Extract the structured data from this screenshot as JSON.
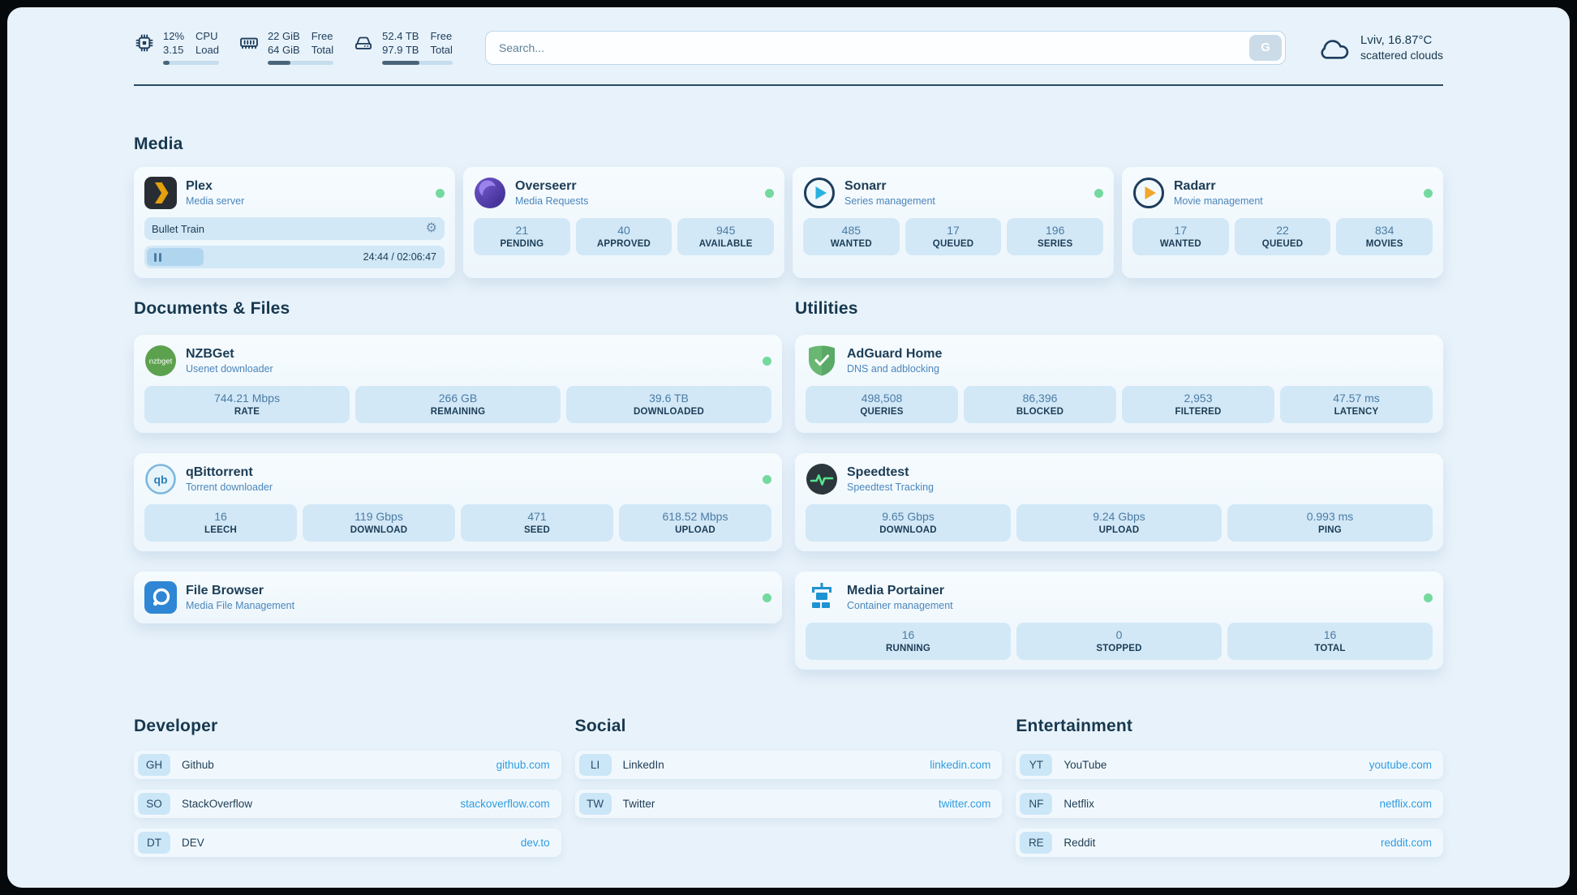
{
  "colors": {
    "accent_link": "#2f9ce0",
    "status_online": "#74d99f",
    "page_background": "#e8f2fa",
    "tile_background": "#d2e8f7"
  },
  "topbar": {
    "cpu": {
      "value": "12%",
      "load": "3.15",
      "label_top": "CPU",
      "label_bottom": "Load",
      "percent": 12
    },
    "ram": {
      "free": "22 GiB",
      "total": "64 GiB",
      "label_top": "Free",
      "label_bottom": "Total",
      "percent": 34
    },
    "disk": {
      "free": "52.4 TB",
      "total": "97.9 TB",
      "label_top": "Free",
      "label_bottom": "Total",
      "percent": 53
    },
    "search": {
      "placeholder": "Search...",
      "button_label": "G"
    },
    "weather": {
      "location": "Lviv, 16.87°C",
      "condition": "scattered clouds"
    }
  },
  "sections": {
    "media": "Media",
    "documents": "Documents & Files",
    "utilities": "Utilities",
    "developer": "Developer",
    "social": "Social",
    "entertainment": "Entertainment"
  },
  "services": {
    "plex": {
      "name": "Plex",
      "subtitle": "Media server",
      "now_playing": "Bullet Train",
      "time": "24:44 / 02:06:47",
      "progress_percent": 19
    },
    "overseerr": {
      "name": "Overseerr",
      "subtitle": "Media Requests",
      "stats": [
        {
          "value": "21",
          "label": "PENDING"
        },
        {
          "value": "40",
          "label": "APPROVED"
        },
        {
          "value": "945",
          "label": "AVAILABLE"
        }
      ]
    },
    "sonarr": {
      "name": "Sonarr",
      "subtitle": "Series management",
      "stats": [
        {
          "value": "485",
          "label": "WANTED"
        },
        {
          "value": "17",
          "label": "QUEUED"
        },
        {
          "value": "196",
          "label": "SERIES"
        }
      ]
    },
    "radarr": {
      "name": "Radarr",
      "subtitle": "Movie management",
      "stats": [
        {
          "value": "17",
          "label": "WANTED"
        },
        {
          "value": "22",
          "label": "QUEUED"
        },
        {
          "value": "834",
          "label": "MOVIES"
        }
      ]
    },
    "nzbget": {
      "name": "NZBGet",
      "subtitle": "Usenet downloader",
      "stats": [
        {
          "value": "744.21 Mbps",
          "label": "RATE"
        },
        {
          "value": "266 GB",
          "label": "REMAINING"
        },
        {
          "value": "39.6 TB",
          "label": "DOWNLOADED"
        }
      ]
    },
    "qbittorrent": {
      "name": "qBittorrent",
      "subtitle": "Torrent downloader",
      "stats": [
        {
          "value": "16",
          "label": "LEECH"
        },
        {
          "value": "119 Gbps",
          "label": "DOWNLOAD"
        },
        {
          "value": "471",
          "label": "SEED"
        },
        {
          "value": "618.52 Mbps",
          "label": "UPLOAD"
        }
      ]
    },
    "filebrowser": {
      "name": "File Browser",
      "subtitle": "Media File Management"
    },
    "adguard": {
      "name": "AdGuard Home",
      "subtitle": "DNS and adblocking",
      "stats": [
        {
          "value": "498,508",
          "label": "QUERIES"
        },
        {
          "value": "86,396",
          "label": "BLOCKED"
        },
        {
          "value": "2,953",
          "label": "FILTERED"
        },
        {
          "value": "47.57 ms",
          "label": "LATENCY"
        }
      ]
    },
    "speedtest": {
      "name": "Speedtest",
      "subtitle": "Speedtest Tracking",
      "stats": [
        {
          "value": "9.65 Gbps",
          "label": "DOWNLOAD"
        },
        {
          "value": "9.24 Gbps",
          "label": "UPLOAD"
        },
        {
          "value": "0.993 ms",
          "label": "PING"
        }
      ]
    },
    "portainer": {
      "name": "Media Portainer",
      "subtitle": "Container management",
      "stats": [
        {
          "value": "16",
          "label": "RUNNING"
        },
        {
          "value": "0",
          "label": "STOPPED"
        },
        {
          "value": "16",
          "label": "TOTAL"
        }
      ]
    }
  },
  "links": {
    "developer": [
      {
        "abbr": "GH",
        "name": "Github",
        "url": "github.com"
      },
      {
        "abbr": "SO",
        "name": "StackOverflow",
        "url": "stackoverflow.com"
      },
      {
        "abbr": "DT",
        "name": "DEV",
        "url": "dev.to"
      }
    ],
    "social": [
      {
        "abbr": "LI",
        "name": "LinkedIn",
        "url": "linkedin.com"
      },
      {
        "abbr": "TW",
        "name": "Twitter",
        "url": "twitter.com"
      }
    ],
    "entertainment": [
      {
        "abbr": "YT",
        "name": "YouTube",
        "url": "youtube.com"
      },
      {
        "abbr": "NF",
        "name": "Netflix",
        "url": "netflix.com"
      },
      {
        "abbr": "RE",
        "name": "Reddit",
        "url": "reddit.com"
      }
    ]
  },
  "icons": {
    "gear": "⚙"
  }
}
